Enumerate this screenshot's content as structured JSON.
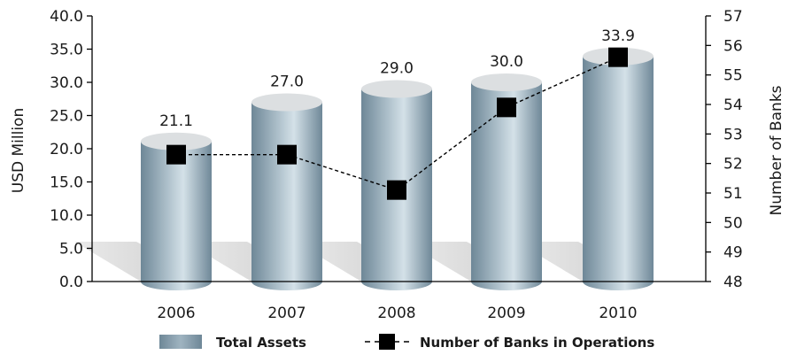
{
  "chart_data": {
    "type": "bar",
    "categories": [
      "2006",
      "2007",
      "2008",
      "2009",
      "2010"
    ],
    "series": [
      {
        "name": "Total Assets",
        "type": "bar",
        "axis": "left",
        "values": [
          21.1,
          27.0,
          29.0,
          30.0,
          33.9
        ],
        "labels": [
          "21.1",
          "27.0",
          "29.0",
          "30.0",
          "33.9"
        ],
        "color": "#7f97a6"
      },
      {
        "name": "Number of Banks in Operations",
        "type": "line",
        "axis": "right",
        "values": [
          52.3,
          52.3,
          51.1,
          53.9,
          55.6
        ],
        "color": "#000000",
        "line_style": "dashed",
        "marker": "square"
      }
    ],
    "ylabel": "USD Million",
    "y2label": "Number of Banks",
    "ylim": [
      0,
      40
    ],
    "y2lim": [
      48,
      57
    ],
    "yticks": [
      "0.0",
      "5.0",
      "10.0",
      "15.0",
      "20.0",
      "25.0",
      "30.0",
      "35.0",
      "40.0"
    ],
    "y2ticks": [
      "48",
      "49",
      "50",
      "51",
      "52",
      "53",
      "54",
      "55",
      "56",
      "57"
    ],
    "legend_position": "bottom",
    "grid": false
  }
}
